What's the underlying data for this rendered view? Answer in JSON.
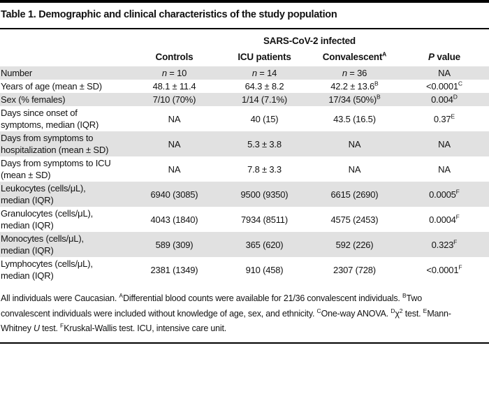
{
  "title": "Table 1. Demographic and clinical characteristics of the study population",
  "table": {
    "group_header": "SARS-CoV-2 infected",
    "columns": [
      {
        "name": "controls",
        "segments": [
          {
            "t": "Controls"
          }
        ]
      },
      {
        "name": "icu-patients",
        "segments": [
          {
            "t": "ICU patients"
          }
        ]
      },
      {
        "name": "convalescent",
        "segments": [
          {
            "t": "Convalescent"
          },
          {
            "sup": "A"
          }
        ]
      },
      {
        "name": "p-value",
        "segments": [
          {
            "i": "P"
          },
          {
            "t": " value"
          }
        ]
      }
    ],
    "rows": [
      {
        "label": "Number",
        "cells": [
          [
            {
              "i": "n"
            },
            {
              "t": " = 10"
            }
          ],
          [
            {
              "i": "n"
            },
            {
              "t": " = 14"
            }
          ],
          [
            {
              "i": "n"
            },
            {
              "t": " = 36"
            }
          ],
          [
            {
              "t": "NA"
            }
          ]
        ]
      },
      {
        "label": "Years of age (mean ± SD)",
        "cells": [
          [
            {
              "t": "48.1 ± 11.4"
            }
          ],
          [
            {
              "t": "64.3 ± 8.2"
            }
          ],
          [
            {
              "t": "42.2 ± 13.6"
            },
            {
              "sup": "B"
            }
          ],
          [
            {
              "t": "<0.0001"
            },
            {
              "sup": "C"
            }
          ]
        ]
      },
      {
        "label": "Sex (% females)",
        "cells": [
          [
            {
              "t": "7/10 (70%)"
            }
          ],
          [
            {
              "t": "1/14 (7.1%)"
            }
          ],
          [
            {
              "t": "17/34 (50%)"
            },
            {
              "sup": "B"
            }
          ],
          [
            {
              "t": "0.004"
            },
            {
              "sup": "D"
            }
          ]
        ]
      },
      {
        "label": "Days since onset of\nsymptoms, median (IQR)",
        "cells": [
          [
            {
              "t": "NA"
            }
          ],
          [
            {
              "t": "40 (15)"
            }
          ],
          [
            {
              "t": "43.5 (16.5)"
            }
          ],
          [
            {
              "t": "0.37"
            },
            {
              "sup": "E"
            }
          ]
        ]
      },
      {
        "label": "Days from symptoms to\nhospitalization (mean ± SD)",
        "cells": [
          [
            {
              "t": "NA"
            }
          ],
          [
            {
              "t": "5.3 ± 3.8"
            }
          ],
          [
            {
              "t": "NA"
            }
          ],
          [
            {
              "t": "NA"
            }
          ]
        ]
      },
      {
        "label": "Days from symptoms to ICU\n(mean ± SD)",
        "cells": [
          [
            {
              "t": "NA"
            }
          ],
          [
            {
              "t": "7.8 ± 3.3"
            }
          ],
          [
            {
              "t": "NA"
            }
          ],
          [
            {
              "t": "NA"
            }
          ]
        ]
      },
      {
        "label": "Leukocytes (cells/μL),\nmedian (IQR)",
        "cells": [
          [
            {
              "t": "6940 (3085)"
            }
          ],
          [
            {
              "t": "9500 (9350)"
            }
          ],
          [
            {
              "t": "6615 (2690)"
            }
          ],
          [
            {
              "t": "0.0005"
            },
            {
              "sup": "F"
            }
          ]
        ]
      },
      {
        "label": "Granulocytes (cells/μL),\nmedian (IQR)",
        "cells": [
          [
            {
              "t": "4043 (1840)"
            }
          ],
          [
            {
              "t": "7934 (8511)"
            }
          ],
          [
            {
              "t": "4575 (2453)"
            }
          ],
          [
            {
              "t": "0.0004"
            },
            {
              "sup": "F"
            }
          ]
        ]
      },
      {
        "label": "Monocytes (cells/μL),\nmedian (IQR)",
        "cells": [
          [
            {
              "t": "589 (309)"
            }
          ],
          [
            {
              "t": "365 (620)"
            }
          ],
          [
            {
              "t": "592 (226)"
            }
          ],
          [
            {
              "t": "0.323"
            },
            {
              "sup": "F"
            }
          ]
        ]
      },
      {
        "label": "Lymphocytes (cells/μL),\nmedian (IQR)",
        "cells": [
          [
            {
              "t": "2381 (1349)"
            }
          ],
          [
            {
              "t": "910 (458)"
            }
          ],
          [
            {
              "t": "2307 (728)"
            }
          ],
          [
            {
              "t": "<0.0001"
            },
            {
              "sup": "F"
            }
          ]
        ]
      }
    ]
  },
  "footnote_segments": [
    {
      "t": "All individuals were Caucasian. "
    },
    {
      "sup": "A"
    },
    {
      "t": "Differential blood counts were available for 21/36 convalescent individuals. "
    },
    {
      "sup": "B"
    },
    {
      "t": "Two"
    },
    {
      "br": true
    },
    {
      "t": "convalescent individuals were included without knowledge of age, sex, and ethnicity. "
    },
    {
      "sup": "C"
    },
    {
      "t": "One-way ANOVA. "
    },
    {
      "sup": "D"
    },
    {
      "t": "χ"
    },
    {
      "sup": "2"
    },
    {
      "t": " test. "
    },
    {
      "sup": "E"
    },
    {
      "t": "Mann-"
    },
    {
      "br": true
    },
    {
      "t": "Whitney "
    },
    {
      "i": "U"
    },
    {
      "t": " test. "
    },
    {
      "sup": "F"
    },
    {
      "t": "Kruskal-Wallis test. ICU, intensive care unit."
    }
  ],
  "colors": {
    "row_shade": "#e1e1e1",
    "rule": "#000000",
    "text": "#121212"
  }
}
